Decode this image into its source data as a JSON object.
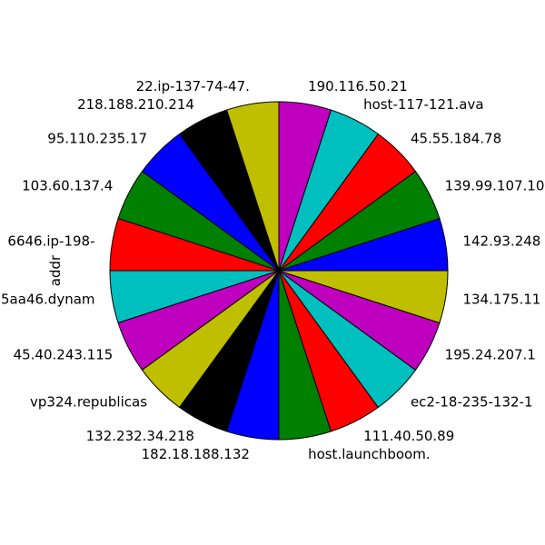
{
  "chart_data": {
    "type": "pie",
    "ylabel": "addr",
    "start_angle_deg": 0,
    "direction": "counterclockwise",
    "slice_colors": [
      "#0000ff",
      "#008000",
      "#ff0000",
      "#00bfbf",
      "#bf00bf",
      "#bfbf00",
      "#000000"
    ],
    "slices": [
      {
        "label": "142.93.248",
        "value": 1
      },
      {
        "label": "139.99.107.10",
        "value": 1
      },
      {
        "label": "45.55.184.78",
        "value": 1
      },
      {
        "label": "host-117-121.ava",
        "value": 1
      },
      {
        "label": "190.116.50.21",
        "value": 1
      },
      {
        "label": "22.ip-137-74-47.",
        "value": 1
      },
      {
        "label": "218.188.210.214",
        "value": 1
      },
      {
        "label": "95.110.235.17",
        "value": 1
      },
      {
        "label": "103.60.137.4",
        "value": 1
      },
      {
        "label": "6646.ip-198-",
        "value": 1
      },
      {
        "label": "5aa46.dynam",
        "value": 1
      },
      {
        "label": "45.40.243.115",
        "value": 1
      },
      {
        "label": "vp324.republicas",
        "value": 1
      },
      {
        "label": "132.232.34.218",
        "value": 1
      },
      {
        "label": "182.18.188.132",
        "value": 1
      },
      {
        "label": "host.launchboom.",
        "value": 1
      },
      {
        "label": "111.40.50.89",
        "value": 1
      },
      {
        "label": "ec2-18-235-132-1",
        "value": 1
      },
      {
        "label": "195.24.207.1",
        "value": 1
      },
      {
        "label": "134.175.11",
        "value": 1
      }
    ]
  }
}
